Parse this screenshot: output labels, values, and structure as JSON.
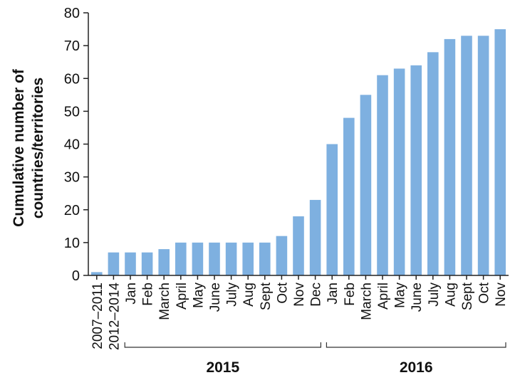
{
  "chart_data": {
    "type": "bar",
    "ylabel_lines": [
      "Cumulative number of",
      "countries/territories"
    ],
    "ylim": [
      0,
      80
    ],
    "yticks": [
      0,
      10,
      20,
      30,
      40,
      50,
      60,
      70,
      80
    ],
    "grid": false,
    "bar_color": "#7eb0e0",
    "categories": [
      "2007–2011",
      "2012–2014",
      "Jan",
      "Feb",
      "March",
      "April",
      "May",
      "June",
      "July",
      "Aug",
      "Sept",
      "Oct",
      "Nov",
      "Dec",
      "Jan",
      "Feb",
      "March",
      "April",
      "May",
      "June",
      "July",
      "Aug",
      "Sept",
      "Oct",
      "Nov"
    ],
    "values": [
      1,
      7,
      7,
      7,
      8,
      10,
      10,
      10,
      10,
      10,
      10,
      12,
      18,
      23,
      40,
      48,
      55,
      61,
      63,
      64,
      68,
      72,
      73,
      73,
      75
    ],
    "groups": [
      {
        "label": "2015",
        "start": 2,
        "end": 13
      },
      {
        "label": "2016",
        "start": 14,
        "end": 24
      }
    ]
  }
}
